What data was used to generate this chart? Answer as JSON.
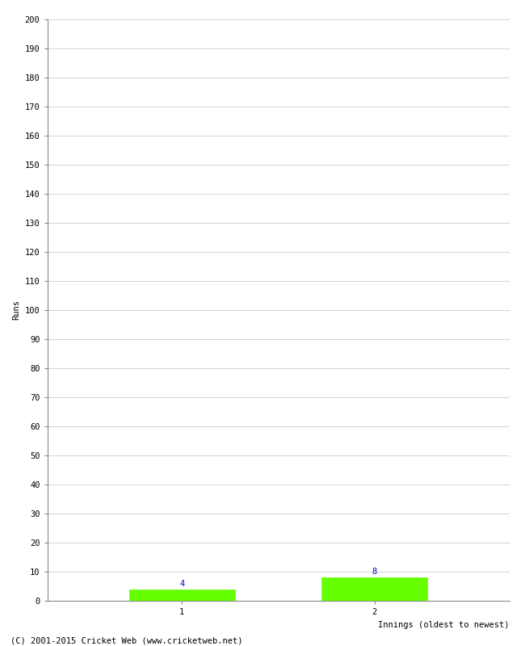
{
  "xlabel": "Innings (oldest to newest)",
  "ylabel": "Runs",
  "categories": [
    1,
    2
  ],
  "values": [
    4,
    8
  ],
  "bar_color": "#66ff00",
  "bar_edgecolor": "#66ff00",
  "label_color": "#0000cc",
  "ylim": [
    0,
    200
  ],
  "yticks": [
    0,
    10,
    20,
    30,
    40,
    50,
    60,
    70,
    80,
    90,
    100,
    110,
    120,
    130,
    140,
    150,
    160,
    170,
    180,
    190,
    200
  ],
  "xticks": [
    1,
    2
  ],
  "background_color": "#ffffff",
  "grid_color": "#cccccc",
  "footer": "(C) 2001-2015 Cricket Web (www.cricketweb.net)",
  "bar_width": 0.55,
  "label_fontsize": 7.5,
  "tick_fontsize": 7.5,
  "axis_label_fontsize": 7.5,
  "footer_fontsize": 7.5
}
